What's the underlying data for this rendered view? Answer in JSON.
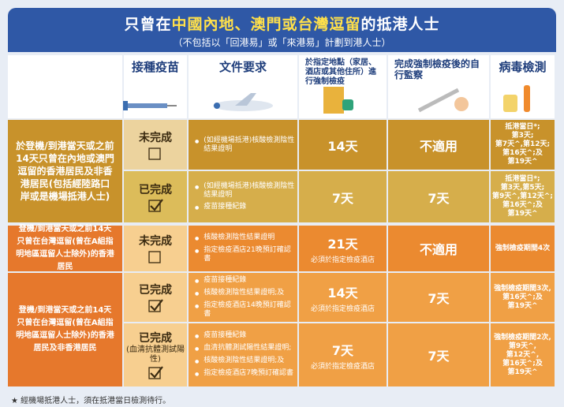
{
  "header": {
    "title_parts": [
      "只曾在",
      "中國內地、澳門或台灣逗留",
      "的抵港人士"
    ],
    "subtitle": "（不包括以「回港易」或「來港易」計劃到港人士）"
  },
  "columns": [
    "接種疫苗",
    "文件要求",
    "於指定地點（家居、酒店或其他住所）進行強制檢疫",
    "完成強制檢疫後的自行監察",
    "病毒檢測"
  ],
  "sections": [
    {
      "description": "於登機/到港當天或之前14天只曾在內地或澳門逗留的香港居民及非香港居民(包括經陸路口岸或是機場抵港人士)",
      "rows": [
        {
          "vaccination": "未完成",
          "documents": [
            "(如經機場抵港)核酸檢測陰性結果證明"
          ],
          "quarantine": "14天",
          "monitoring": "不適用",
          "testing": [
            "抵港當日*;",
            "第3天;",
            "第7天^,第12天;",
            "第16天^;及",
            "第19天^"
          ]
        },
        {
          "vaccination": "已完成",
          "documents": [
            "(如經機場抵港)核酸檢測陰性結果證明",
            "疫苗接種紀錄"
          ],
          "quarantine": "7天",
          "monitoring": "7天",
          "testing": [
            "抵港當日*;",
            "第3天,第5天;",
            "第9天^,第12天^;",
            "第16天^;及",
            "第19天^"
          ]
        }
      ]
    },
    {
      "description": "登機/到港當天或之前14天只曾在台灣逗留(曾在A組指明地區逗留人士除外)的香港居民",
      "rows": [
        {
          "vaccination": "未完成",
          "documents": [
            "核酸檢測陰性結果證明",
            "指定檢疫酒店21晚預訂確認書"
          ],
          "quarantine": "21天",
          "quarantine_note": "必須於指定檢疫酒店",
          "monitoring": "不適用",
          "testing": [
            "強制檢疫期間4次"
          ]
        }
      ]
    },
    {
      "description": "登機/到港當天或之前14天只曾在台灣逗留(曾在A組指明地區逗留人士除外)的香港居民及非香港居民",
      "rows": [
        {
          "vaccination": "已完成",
          "documents": [
            "疫苗接種紀錄",
            "核酸檢測陰性結果證明;及",
            "指定檢疫酒店14晚預訂確認書"
          ],
          "quarantine": "14天",
          "quarantine_note": "必須於指定檢疫酒店",
          "monitoring": "7天",
          "testing": [
            "強制檢疫期間3次,",
            "第16天^;及",
            "第19天^"
          ]
        },
        {
          "vaccination": "已完成",
          "vaccination_note": "(血清抗體測試陽性)",
          "documents": [
            "疫苗接種紀錄",
            "血清抗體測試陽性結果證明;",
            "核酸檢測陰性結果證明;及",
            "指定檢疫酒店7晚預訂確認書"
          ],
          "quarantine": "7天",
          "quarantine_note": "必須於指定檢疫酒店",
          "monitoring": "7天",
          "testing": [
            "強制檢疫期間2次,第9天^,",
            "第12天^,",
            "第16天^;及",
            "第19天^"
          ]
        }
      ]
    }
  ],
  "footnote": "★ 經機場抵港人士，須在抵港當日檢測待行。"
}
